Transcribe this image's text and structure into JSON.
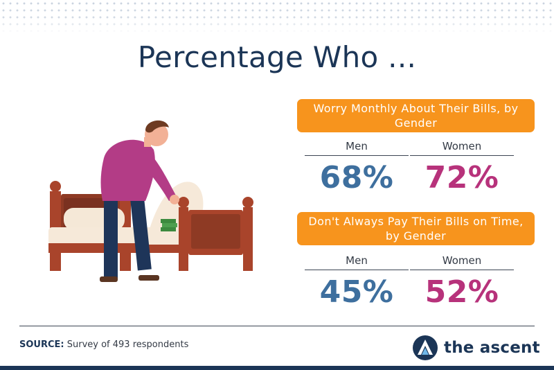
{
  "title": "Percentage Who ...",
  "chart_data": [
    {
      "type": "bar",
      "title": "Worry Monthly About Their Bills, by Gender",
      "categories": [
        "Men",
        "Women"
      ],
      "values": [
        68,
        72
      ],
      "labels": [
        "68%",
        "72%"
      ]
    },
    {
      "type": "bar",
      "title": "Don't Always Pay Their Bills on Time, by Gender",
      "categories": [
        "Men",
        "Women"
      ],
      "values": [
        45,
        52
      ],
      "labels": [
        "45%",
        "52%"
      ]
    }
  ],
  "colors": {
    "banner": "#f7941d",
    "men": "#3e6f9e",
    "women": "#b7327b",
    "navy": "#1b3556"
  },
  "footer": {
    "source_label": "SOURCE:",
    "source_text": "Survey of 493 respondents"
  },
  "brand": {
    "name": "the ascent",
    "icon": "ascent-logo-icon"
  },
  "illustration": {
    "icon": "man-making-bed-illustration"
  }
}
